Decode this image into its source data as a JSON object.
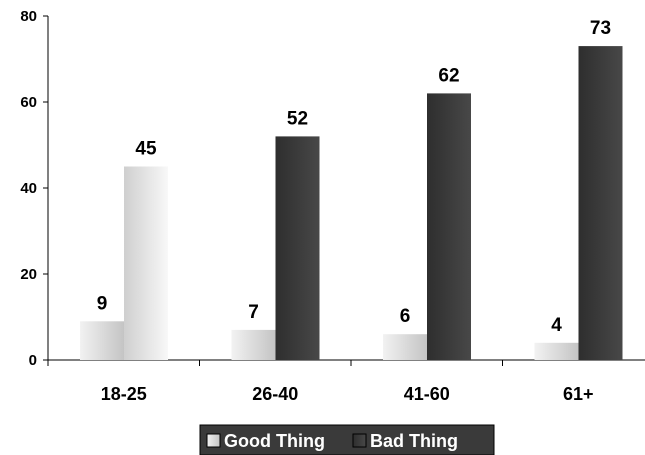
{
  "chart_data": {
    "type": "bar",
    "title": "",
    "xlabel": "",
    "ylabel": "",
    "categories": [
      "18-25",
      "26-40",
      "41-60",
      "61+"
    ],
    "series": [
      {
        "name": "Good Thing",
        "values": [
          9,
          7,
          6,
          4
        ],
        "color": "#d9d9d9"
      },
      {
        "name": "Bad Thing",
        "values": [
          45,
          52,
          62,
          73
        ],
        "color": "#3c3c3c"
      }
    ],
    "ylim": [
      0,
      80
    ],
    "yticks": [
      0,
      20,
      40,
      60,
      80
    ],
    "grid": false,
    "legend_position": "bottom",
    "show_data_labels": true
  }
}
